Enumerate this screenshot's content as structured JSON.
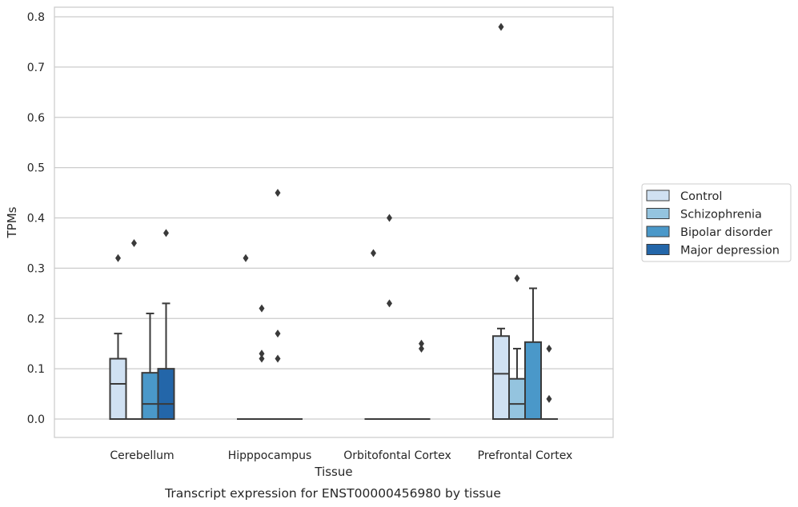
{
  "caption": "Transcript expression for ENST00000456980 by tissue",
  "chart_data": {
    "type": "box",
    "xlabel": "Tissue",
    "ylabel": "TPMs",
    "ylim": [
      -0.038,
      0.82
    ],
    "yticks": [
      "0.0",
      "0.1",
      "0.2",
      "0.3",
      "0.4",
      "0.5",
      "0.6",
      "0.7",
      "0.8"
    ],
    "grid": true,
    "legend_placement": "center-right outside",
    "categories": [
      "Cerebellum",
      "Hipppocampus",
      "Orbitofontal Cortex",
      "Prefrontal Cortex"
    ],
    "series": [
      {
        "name": "Control",
        "color": "#d0e1f2",
        "boxes": [
          {
            "q1": 0.0,
            "median": 0.07,
            "q3": 0.12,
            "whisker_low": 0.0,
            "whisker_high": 0.17,
            "outliers": [
              0.32
            ]
          },
          {
            "q1": 0.0,
            "median": 0.0,
            "q3": 0.0,
            "whisker_low": 0.0,
            "whisker_high": 0.0,
            "outliers": [
              0.32
            ]
          },
          {
            "q1": 0.0,
            "median": 0.0,
            "q3": 0.0,
            "whisker_low": 0.0,
            "whisker_high": 0.0,
            "outliers": [
              0.33
            ]
          },
          {
            "q1": 0.0,
            "median": 0.09,
            "q3": 0.165,
            "whisker_low": 0.0,
            "whisker_high": 0.18,
            "outliers": [
              0.78
            ]
          }
        ]
      },
      {
        "name": "Schizophrenia",
        "color": "#94c4df",
        "boxes": [
          {
            "q1": 0.0,
            "median": 0.0,
            "q3": 0.0,
            "whisker_low": 0.0,
            "whisker_high": 0.0,
            "outliers": [
              0.35
            ]
          },
          {
            "q1": 0.0,
            "median": 0.0,
            "q3": 0.0,
            "whisker_low": 0.0,
            "whisker_high": 0.0,
            "outliers": [
              0.22,
              0.13,
              0.12
            ]
          },
          {
            "q1": 0.0,
            "median": 0.0,
            "q3": 0.0,
            "whisker_low": 0.0,
            "whisker_high": 0.0,
            "outliers": [
              0.4,
              0.23
            ]
          },
          {
            "q1": 0.0,
            "median": 0.03,
            "q3": 0.08,
            "whisker_low": 0.0,
            "whisker_high": 0.14,
            "outliers": [
              0.28
            ]
          }
        ]
      },
      {
        "name": "Bipolar disorder",
        "color": "#4a98c9",
        "boxes": [
          {
            "q1": 0.0,
            "median": 0.03,
            "q3": 0.092,
            "whisker_low": 0.0,
            "whisker_high": 0.21,
            "outliers": []
          },
          {
            "q1": 0.0,
            "median": 0.0,
            "q3": 0.0,
            "whisker_low": 0.0,
            "whisker_high": 0.0,
            "outliers": [
              0.45,
              0.17,
              0.12
            ]
          },
          {
            "q1": 0.0,
            "median": 0.0,
            "q3": 0.0,
            "whisker_low": 0.0,
            "whisker_high": 0.0,
            "outliers": []
          },
          {
            "q1": 0.0,
            "median": 0.0,
            "q3": 0.153,
            "whisker_low": 0.0,
            "whisker_high": 0.26,
            "outliers": []
          }
        ]
      },
      {
        "name": "Major depression",
        "color": "#2366a9",
        "boxes": [
          {
            "q1": 0.0,
            "median": 0.03,
            "q3": 0.1,
            "whisker_low": 0.0,
            "whisker_high": 0.23,
            "outliers": [
              0.37
            ]
          },
          {
            "q1": 0.0,
            "median": 0.0,
            "q3": 0.0,
            "whisker_low": 0.0,
            "whisker_high": 0.0,
            "outliers": []
          },
          {
            "q1": 0.0,
            "median": 0.0,
            "q3": 0.0,
            "whisker_low": 0.0,
            "whisker_high": 0.0,
            "outliers": [
              0.15,
              0.14
            ]
          },
          {
            "q1": 0.0,
            "median": 0.0,
            "q3": 0.0,
            "whisker_low": 0.0,
            "whisker_high": 0.0,
            "outliers": [
              0.14,
              0.04
            ]
          }
        ]
      }
    ]
  },
  "colors": {
    "grid": "#cccccc",
    "frame": "#cccccc",
    "box_edge": "#3a3a3a",
    "legend_border": "#cccccc"
  }
}
